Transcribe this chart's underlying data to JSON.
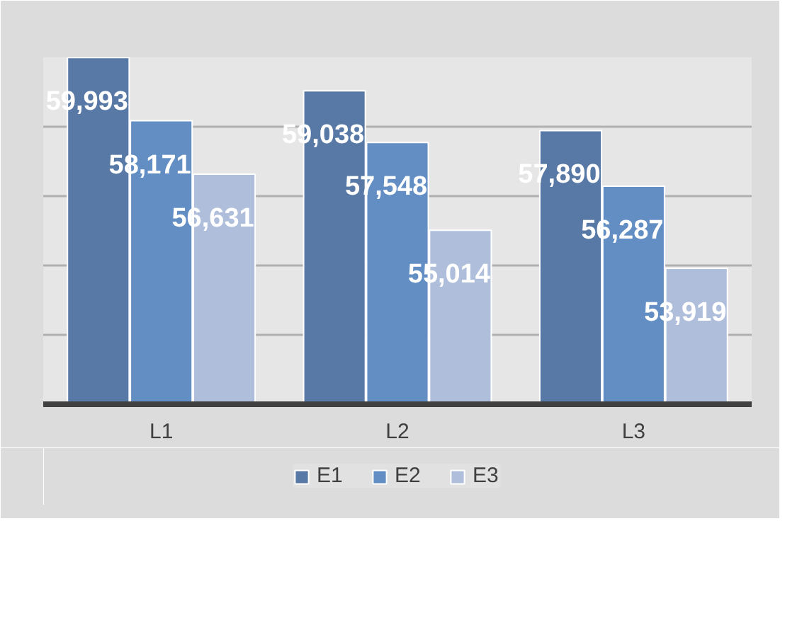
{
  "chart_data": {
    "type": "bar",
    "categories": [
      "L1",
      "L2",
      "L3"
    ],
    "series": [
      {
        "name": "E1",
        "color": "#5878a5",
        "values": [
          59993,
          59038,
          57890
        ],
        "value_labels": [
          "59,993",
          "59,038",
          "57,890"
        ]
      },
      {
        "name": "E2",
        "color": "#628ec4",
        "values": [
          58171,
          57548,
          56287
        ],
        "value_labels": [
          "58,171",
          "57,548",
          "56,287"
        ]
      },
      {
        "name": "E3",
        "color": "#afbfdb",
        "values": [
          56631,
          55014,
          53919
        ],
        "value_labels": [
          "56,631",
          "55,014",
          "53,919"
        ]
      }
    ],
    "ylim": [
      50000,
      60000
    ],
    "yticks": [
      {
        "value": 50000,
        "label": null
      },
      {
        "value": 52000,
        "label": null
      },
      {
        "value": 54000,
        "label": null
      },
      {
        "value": 56000,
        "label": null
      },
      {
        "value": 58000,
        "label": null
      },
      {
        "value": 60000,
        "label": null
      }
    ],
    "tick_labels": "x",
    "grid": "y",
    "legend": "bottom"
  }
}
